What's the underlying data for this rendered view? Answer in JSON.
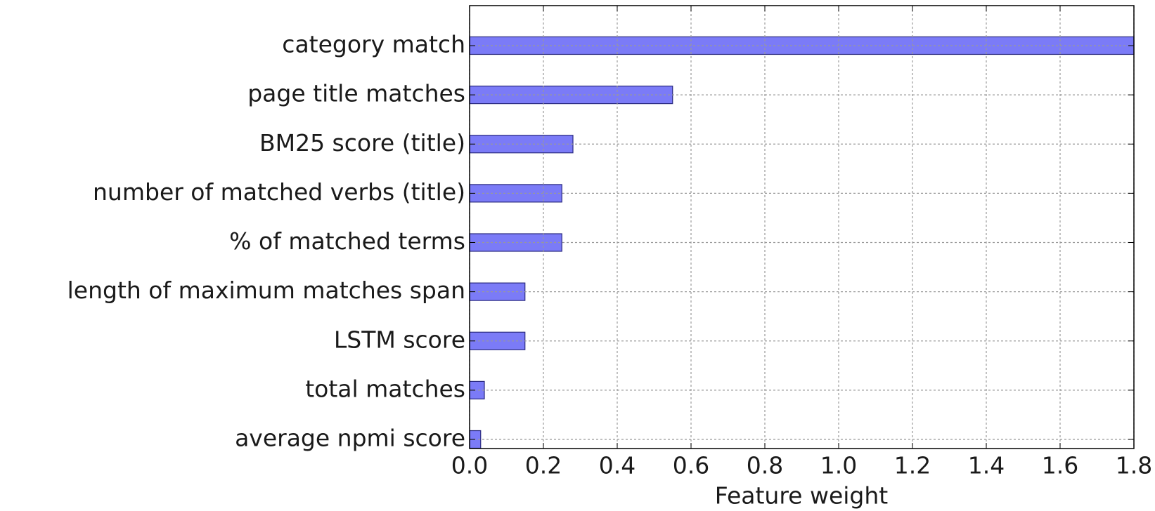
{
  "chart_data": {
    "type": "barh",
    "xlabel": "Feature weight",
    "categories": [
      "category match",
      "page title matches",
      "BM25 score (title)",
      "number of matched verbs (title)",
      "% of matched terms",
      "length of maximum matches span",
      "LSTM score",
      "total matches",
      "average npmi score"
    ],
    "values": [
      1.8,
      0.55,
      0.28,
      0.25,
      0.25,
      0.15,
      0.15,
      0.04,
      0.03
    ],
    "color": "#7b7bf7",
    "xlim": [
      0,
      1.8
    ],
    "xticks": [
      {
        "value": 0,
        "label": "0.0"
      },
      0.2,
      0.4,
      0.6,
      0.8,
      {
        "value": 1,
        "label": "1.0"
      },
      1.2,
      1.4,
      1.6,
      1.8
    ],
    "grid": true
  }
}
